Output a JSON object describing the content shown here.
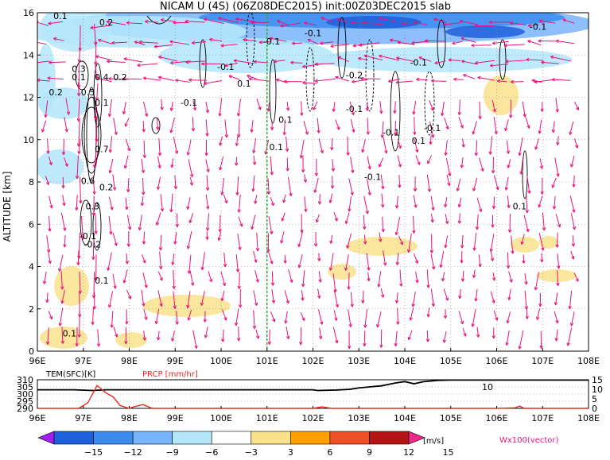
{
  "title": "NICAM  U  (4S)  (06Z08DEC2015)  init:00Z03DEC2015  slab",
  "chart_data": [
    {
      "type": "heatmap",
      "title": "NICAM  U  (4S)  (06Z08DEC2015)  init:00Z03DEC2015  slab",
      "xlabel": "",
      "ylabel": "ALTITUDE  [km]",
      "x_ticks": [
        "96E",
        "97E",
        "98E",
        "99E",
        "100E",
        "101E",
        "102E",
        "103E",
        "104E",
        "105E",
        "106E",
        "107E",
        "108E"
      ],
      "y_ticks": [
        "0",
        "2",
        "4",
        "6",
        "8",
        "10",
        "12",
        "14",
        "16"
      ],
      "xlim": [
        96,
        108
      ],
      "ylim": [
        0,
        16
      ],
      "grid": true,
      "marker_line_x": 101,
      "contour_labels": [
        {
          "text": "0.1",
          "x": 96.5,
          "y": 15.7
        },
        {
          "text": "0.2",
          "x": 97.5,
          "y": 15.4
        },
        {
          "text": "0.3",
          "x": 96.9,
          "y": 13.2
        },
        {
          "text": "0.1",
          "x": 96.9,
          "y": 12.8
        },
        {
          "text": "0.4",
          "x": 97.4,
          "y": 12.8
        },
        {
          "text": "0.2",
          "x": 97.8,
          "y": 12.8
        },
        {
          "text": "0.2",
          "x": 96.4,
          "y": 12.1
        },
        {
          "text": "0.5",
          "x": 97.1,
          "y": 12.1
        },
        {
          "text": "0.1",
          "x": 97.4,
          "y": 11.6
        },
        {
          "text": "0.7",
          "x": 97.4,
          "y": 9.4
        },
        {
          "text": "0.6",
          "x": 97.1,
          "y": 7.9
        },
        {
          "text": "0.2",
          "x": 97.5,
          "y": 7.6
        },
        {
          "text": "0.3",
          "x": 97.2,
          "y": 6.7
        },
        {
          "text": "-0.1",
          "x": 97.1,
          "y": 5.3
        },
        {
          "text": "-0.2",
          "x": 97.2,
          "y": 4.9
        },
        {
          "text": "0.1",
          "x": 97.4,
          "y": 3.2
        },
        {
          "text": "0.1",
          "x": 96.7,
          "y": 0.7
        },
        {
          "text": "-0.1",
          "x": 100.1,
          "y": 13.3
        },
        {
          "text": "-0.1",
          "x": 99.3,
          "y": 11.6
        },
        {
          "text": "0.1",
          "x": 100.5,
          "y": 12.5
        },
        {
          "text": "-0.1",
          "x": 101.1,
          "y": 14.5
        },
        {
          "text": "-0.1",
          "x": 102.0,
          "y": 14.9
        },
        {
          "text": "0.1",
          "x": 101.4,
          "y": 10.8
        },
        {
          "text": "0.1",
          "x": 101.2,
          "y": 9.5
        },
        {
          "text": "-0.2",
          "x": 102.9,
          "y": 12.9
        },
        {
          "text": "-0.1",
          "x": 102.9,
          "y": 11.3
        },
        {
          "text": "-0.1",
          "x": 103.7,
          "y": 10.2
        },
        {
          "text": "-0.1",
          "x": 103.3,
          "y": 8.1
        },
        {
          "text": "-0.1",
          "x": 104.3,
          "y": 13.5
        },
        {
          "text": "-0.1",
          "x": 104.6,
          "y": 10.4
        },
        {
          "text": "0.1",
          "x": 104.3,
          "y": 9.8
        },
        {
          "text": "-0.1",
          "x": 106.9,
          "y": 15.2
        },
        {
          "text": "0.1",
          "x": 106.5,
          "y": 6.7
        }
      ]
    },
    {
      "type": "line",
      "left_label": "TEM(SFC)[K]",
      "right_label": "PRCP  [mm/hr]",
      "left_ticks": [
        "310",
        "305",
        "300",
        "295",
        "290"
      ],
      "right_ticks": [
        "15",
        "10",
        "5",
        "0"
      ],
      "annotation": "10",
      "x_ticks": [
        "96E",
        "97E",
        "98E",
        "99E",
        "100E",
        "101E",
        "102E",
        "103E",
        "104E",
        "105E",
        "106E",
        "107E",
        "108E"
      ],
      "xlim": [
        96,
        108
      ],
      "series": [
        {
          "x": [
            96.0,
            96.8,
            97.2,
            97.5,
            98.0,
            99.0,
            100.0,
            101.0,
            101.5,
            102.0,
            102.1,
            102.5,
            102.8,
            103.0,
            103.3,
            103.5,
            103.8,
            104.0,
            104.2,
            104.4,
            104.7,
            105.0,
            106.5,
            108.0
          ],
          "values": [
            303,
            303,
            302.5,
            303,
            303,
            303,
            303,
            303,
            303,
            303,
            302.5,
            302.8,
            303.3,
            304.3,
            305.2,
            305.8,
            307.8,
            308.7,
            307.2,
            308.6,
            309.5,
            309.8,
            309.8,
            309.8
          ]
        },
        {
          "x": [
            96.0,
            96.9,
            97.1,
            97.3,
            97.5,
            97.65,
            97.8,
            98.0,
            98.1,
            98.3,
            98.5,
            101.0,
            102.0,
            102.2,
            102.4,
            106.0,
            106.4,
            106.5,
            106.6,
            108.0
          ],
          "values": [
            0,
            0,
            3,
            12,
            8,
            6,
            1.5,
            0,
            0.8,
            2,
            0,
            0,
            0,
            0.8,
            0,
            0,
            0.3,
            1.2,
            0,
            0
          ]
        }
      ]
    }
  ],
  "colorbar": {
    "labels": [
      "−15",
      "−12",
      "−9",
      "−6",
      "−3",
      "3",
      "6",
      "9",
      "12",
      "15"
    ],
    "colors": [
      "#a020f0",
      "#1e5fdc",
      "#3c8cf0",
      "#78b4fa",
      "#b4e6fa",
      "#ffffff",
      "#fae28c",
      "#ffa000",
      "#f05028",
      "#b41414",
      "#f0288c"
    ],
    "unit": "[m/s]",
    "vector_label": "Wx100(vector)"
  },
  "colors": {
    "vector": "#e6147a",
    "marker_line": "#2ab02a",
    "temperature": "#000000",
    "precip": "#e8281e",
    "precip_label": "#e8281e",
    "vector_label": "#e6147a"
  }
}
